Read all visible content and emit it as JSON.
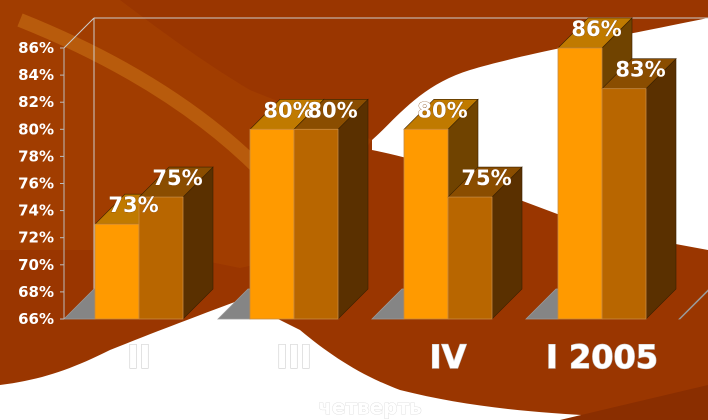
{
  "chart_data": {
    "type": "bar",
    "categories": [
      "II",
      "III",
      "IV",
      "I 2005"
    ],
    "series": [
      {
        "values": [
          73,
          80,
          80,
          86
        ]
      },
      {
        "values": [
          75,
          80,
          75,
          83
        ]
      }
    ],
    "data_labels": [
      [
        "73%",
        "80%",
        "80%",
        "86%"
      ],
      [
        "75%",
        "80%",
        "75%",
        "83%"
      ]
    ],
    "yticks": [
      "66%",
      "68%",
      "70%",
      "72%",
      "74%",
      "76%",
      "78%",
      "80%",
      "82%",
      "84%",
      "86%"
    ],
    "ylim": [
      66,
      86
    ],
    "xlabel": "четверть",
    "ylabel": "",
    "title": "",
    "three_d": true,
    "colors": {
      "series_front": [
        "#ff9a00",
        "#b86600"
      ],
      "series_top": [
        "#c07a00",
        "#8a4d00"
      ],
      "series_side": [
        "#704300",
        "#5a3000"
      ],
      "floor": "#858585",
      "background": "#9a3600"
    }
  }
}
